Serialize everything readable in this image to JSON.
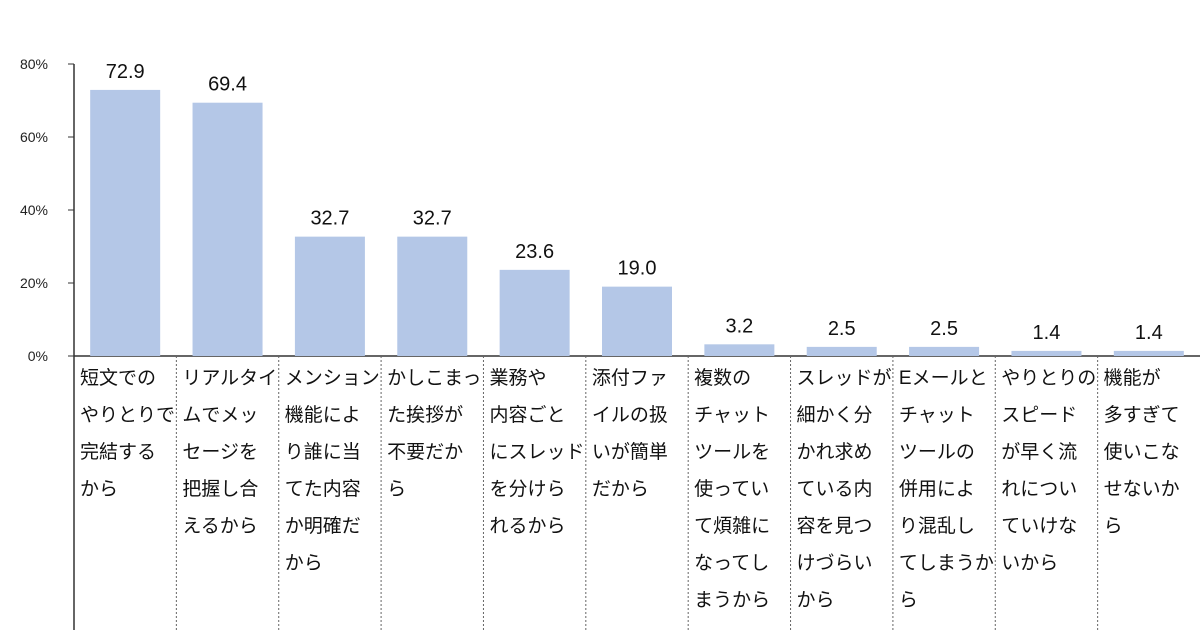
{
  "chart_data": {
    "type": "bar",
    "ylim": [
      0,
      80
    ],
    "yticks": [
      "0%",
      "20%",
      "40%",
      "60%",
      "80%"
    ],
    "ytick_values": [
      0,
      20,
      40,
      60,
      80
    ],
    "grid": false,
    "bar_color": "#b4c7e7",
    "categories": [
      [
        "短文での",
        "やりとりで",
        "完結する",
        "から"
      ],
      [
        "リアルタイ",
        "ムでメッ",
        "セージを",
        "把握し合",
        "えるから"
      ],
      [
        "メンション",
        "機能によ",
        "り誰に当",
        "てた内容",
        "か明確だ",
        "から"
      ],
      [
        "かしこまっ",
        "た挨拶が",
        "不要だか",
        "ら"
      ],
      [
        "業務や",
        "内容ごと",
        "にスレッド",
        "を分けら",
        "れるから"
      ],
      [
        "添付ファ",
        "イルの扱",
        "いが簡単",
        "だから"
      ],
      [
        "複数の",
        "チャット",
        "ツールを",
        "使ってい",
        "て煩雑に",
        "なってし",
        "まうから"
      ],
      [
        "スレッドが",
        "細かく分",
        "かれ求め",
        "ている内",
        "容を見つ",
        "けづらい",
        "から"
      ],
      [
        "Eメールと",
        "チャット",
        "ツールの",
        "併用によ",
        "り混乱し",
        "てしまうか",
        "ら"
      ],
      [
        "やりとりの",
        "スピード",
        "が早く流",
        "れについ",
        "ていけな",
        "いから"
      ],
      [
        "機能が",
        "多すぎて",
        "使いこな",
        "せないか",
        "ら"
      ]
    ],
    "values": [
      72.9,
      69.4,
      32.7,
      32.7,
      23.6,
      19.0,
      3.2,
      2.5,
      2.5,
      1.4,
      1.4
    ],
    "value_labels": [
      "72.9",
      "69.4",
      "32.7",
      "32.7",
      "23.6",
      "19.0",
      "3.2",
      "2.5",
      "2.5",
      "1.4",
      "1.4"
    ]
  }
}
